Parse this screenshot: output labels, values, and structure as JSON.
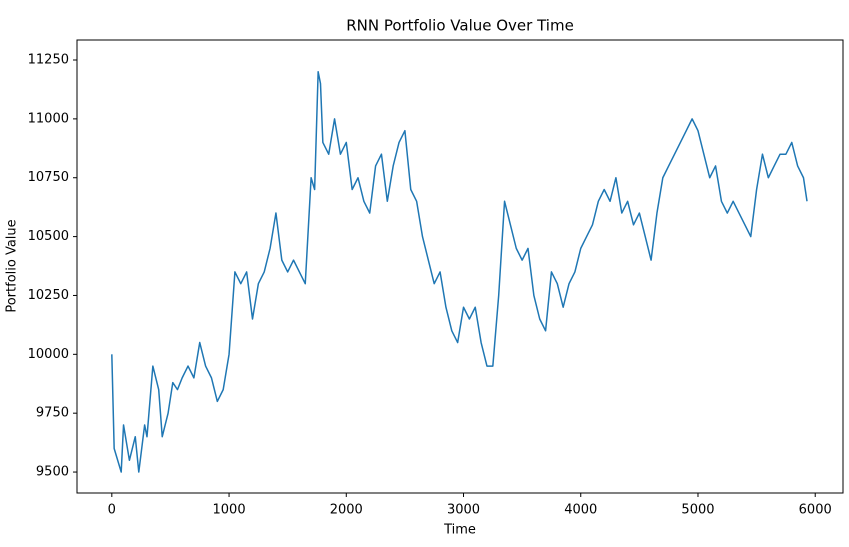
{
  "chart_data": {
    "type": "line",
    "title": "RNN Portfolio Value Over Time",
    "x_label": "Time",
    "y_label": "Portfolio Value",
    "xlim": [
      -297,
      6237
    ],
    "ylim": [
      9411,
      11335
    ],
    "xticks": [
      0,
      1000,
      2000,
      3000,
      4000,
      5000,
      6000
    ],
    "yticks": [
      9500,
      9750,
      10000,
      10250,
      10500,
      10750,
      11000,
      11250
    ],
    "series": [
      {
        "name": "Portfolio Value",
        "color": "#1f77b4",
        "x": [
          0,
          20,
          80,
          100,
          150,
          200,
          230,
          280,
          300,
          350,
          400,
          430,
          480,
          520,
          560,
          600,
          650,
          700,
          750,
          800,
          850,
          900,
          950,
          1000,
          1050,
          1100,
          1150,
          1200,
          1250,
          1300,
          1350,
          1400,
          1450,
          1500,
          1550,
          1600,
          1650,
          1700,
          1730,
          1760,
          1780,
          1800,
          1850,
          1900,
          1950,
          2000,
          2050,
          2100,
          2150,
          2200,
          2250,
          2300,
          2350,
          2400,
          2450,
          2500,
          2550,
          2600,
          2650,
          2700,
          2750,
          2800,
          2850,
          2900,
          2950,
          3000,
          3050,
          3100,
          3150,
          3200,
          3250,
          3300,
          3350,
          3400,
          3450,
          3500,
          3550,
          3600,
          3650,
          3700,
          3750,
          3800,
          3850,
          3900,
          3950,
          4000,
          4050,
          4100,
          4150,
          4200,
          4250,
          4300,
          4350,
          4400,
          4450,
          4500,
          4550,
          4600,
          4650,
          4700,
          4750,
          4800,
          4850,
          4900,
          4950,
          5000,
          5050,
          5100,
          5150,
          5200,
          5250,
          5300,
          5350,
          5400,
          5450,
          5500,
          5550,
          5600,
          5650,
          5700,
          5750,
          5800,
          5850,
          5900,
          5930
        ],
        "values": [
          10000,
          9600,
          9500,
          9700,
          9550,
          9650,
          9500,
          9700,
          9650,
          9950,
          9850,
          9650,
          9750,
          9880,
          9850,
          9900,
          9950,
          9900,
          10050,
          9950,
          9900,
          9800,
          9850,
          10000,
          10350,
          10300,
          10350,
          10150,
          10300,
          10350,
          10450,
          10600,
          10400,
          10350,
          10400,
          10350,
          10300,
          10750,
          10700,
          11200,
          11150,
          10900,
          10850,
          11000,
          10850,
          10900,
          10700,
          10750,
          10650,
          10600,
          10800,
          10850,
          10650,
          10800,
          10900,
          10950,
          10700,
          10650,
          10500,
          10400,
          10300,
          10350,
          10200,
          10100,
          10050,
          10200,
          10150,
          10200,
          10050,
          9950,
          9950,
          10250,
          10650,
          10550,
          10450,
          10400,
          10450,
          10250,
          10150,
          10100,
          10350,
          10300,
          10200,
          10300,
          10350,
          10450,
          10500,
          10550,
          10650,
          10700,
          10650,
          10750,
          10600,
          10650,
          10550,
          10600,
          10500,
          10400,
          10600,
          10750,
          10800,
          10850,
          10900,
          10950,
          11000,
          10950,
          10850,
          10750,
          10800,
          10650,
          10600,
          10650,
          10600,
          10550,
          10500,
          10700,
          10850,
          10750,
          10800,
          10850,
          10850,
          10900,
          10800,
          10750,
          10650
        ]
      }
    ]
  }
}
